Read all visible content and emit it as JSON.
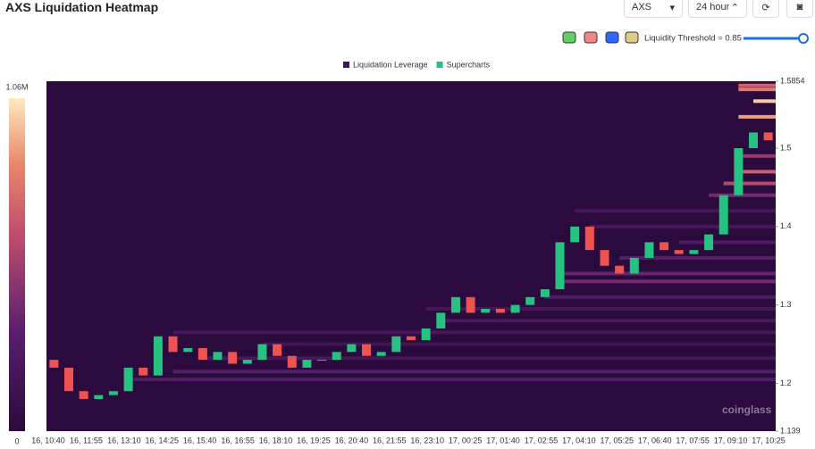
{
  "header": {
    "title": "AXS Liquidation Heatmap",
    "symbol": "AXS",
    "range": "24 hour",
    "threshold": "Liquidity Threshold = 0.85"
  },
  "chart_data": {
    "type": "candlestick-heatmap",
    "legend": [
      "Liquidation Leverage",
      "Supercharts"
    ],
    "watermark": "coinglass",
    "colorbar": {
      "lim": [
        0,
        1060000
      ],
      "ticks": [
        {
          "value": 1060000,
          "label": "1.06M"
        },
        0
      ]
    },
    "ylim": [
      1.139,
      1.5854
    ],
    "yticks": [
      1.139,
      1.2,
      1.3,
      1.4,
      1.5,
      1.5854
    ],
    "xticks": [
      "16, 10:40",
      "16, 11:55",
      "16, 13:10",
      "16, 14:25",
      "16, 15:40",
      "16, 16:55",
      "16, 18:10",
      "16, 19:25",
      "16, 20:40",
      "16, 21:55",
      "16, 23:10",
      "17, 00:25",
      "17, 01:40",
      "17, 02:55",
      "17, 04:10",
      "17, 05:25",
      "17, 06:40",
      "17, 07:55",
      "17, 09:10",
      "17, 10:25"
    ],
    "open": [
      1.23,
      1.22,
      1.19,
      1.18,
      1.185,
      1.19,
      1.22,
      1.21,
      1.26,
      1.24,
      1.245,
      1.23,
      1.24,
      1.225,
      1.23,
      1.25,
      1.235,
      1.22,
      1.23,
      1.23,
      1.24,
      1.25,
      1.235,
      1.24,
      1.26,
      1.255,
      1.27,
      1.29,
      1.31,
      1.29,
      1.295,
      1.29,
      1.3,
      1.31,
      1.32,
      1.38,
      1.4,
      1.37,
      1.35,
      1.34,
      1.36,
      1.38,
      1.37,
      1.365,
      1.37,
      1.39,
      1.44,
      1.5,
      1.52
    ],
    "close": [
      1.22,
      1.19,
      1.18,
      1.185,
      1.19,
      1.22,
      1.21,
      1.26,
      1.24,
      1.245,
      1.23,
      1.24,
      1.225,
      1.23,
      1.25,
      1.235,
      1.22,
      1.23,
      1.23,
      1.24,
      1.25,
      1.235,
      1.24,
      1.26,
      1.255,
      1.27,
      1.29,
      1.31,
      1.29,
      1.295,
      1.29,
      1.3,
      1.31,
      1.32,
      1.38,
      1.4,
      1.37,
      1.35,
      1.34,
      1.36,
      1.38,
      1.37,
      1.365,
      1.37,
      1.39,
      1.44,
      1.5,
      1.52,
      1.51
    ],
    "colors": {
      "up": "#26c281",
      "down": "#ef5350"
    },
    "levels": [
      {
        "price": 1.205,
        "from": 5,
        "value": 250000
      },
      {
        "price": 1.215,
        "from": 8,
        "value": 300000
      },
      {
        "price": 1.232,
        "from": 10,
        "value": 200000
      },
      {
        "price": 1.25,
        "from": 14,
        "value": 150000
      },
      {
        "price": 1.265,
        "from": 8,
        "value": 200000
      },
      {
        "price": 1.28,
        "from": 26,
        "value": 220000
      },
      {
        "price": 1.295,
        "from": 25,
        "value": 180000
      },
      {
        "price": 1.31,
        "from": 33,
        "value": 250000
      },
      {
        "price": 1.33,
        "from": 34,
        "value": 400000
      },
      {
        "price": 1.34,
        "from": 34,
        "value": 350000
      },
      {
        "price": 1.36,
        "from": 38,
        "value": 300000
      },
      {
        "price": 1.38,
        "from": 42,
        "value": 250000
      },
      {
        "price": 1.4,
        "from": 36,
        "value": 200000
      },
      {
        "price": 1.42,
        "from": 35,
        "value": 180000
      },
      {
        "price": 1.44,
        "from": 44,
        "value": 400000
      },
      {
        "price": 1.455,
        "from": 45,
        "value": 600000
      },
      {
        "price": 1.47,
        "from": 46,
        "value": 700000
      },
      {
        "price": 1.49,
        "from": 46,
        "value": 500000
      },
      {
        "price": 1.54,
        "from": 46,
        "value": 900000
      },
      {
        "price": 1.56,
        "from": 47,
        "value": 1000000
      },
      {
        "price": 1.575,
        "from": 46,
        "value": 800000
      },
      {
        "price": 1.58,
        "from": 46,
        "value": 700000
      }
    ]
  }
}
